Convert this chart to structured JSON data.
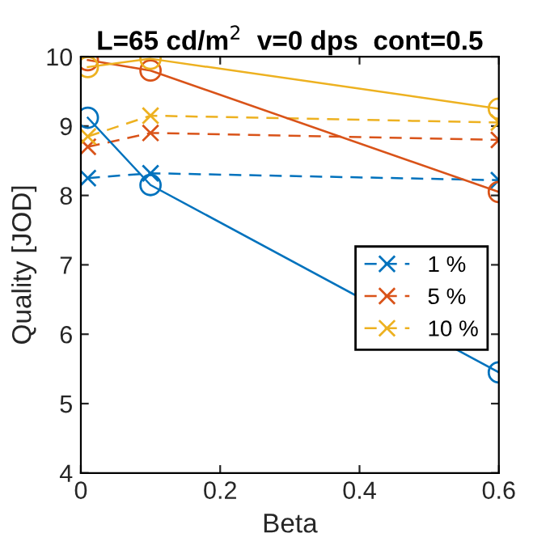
{
  "chart_data": {
    "type": "line",
    "title": "L=65 cd/m$^{2}$  v=0 dps  cont=0.5",
    "xlabel": "Beta",
    "ylabel": "Quality [JOD]",
    "x": [
      0.01,
      0.1,
      0.6
    ],
    "series": [
      {
        "name": "1 %",
        "color": "#0072bd",
        "values": [
          8.25,
          8.32,
          8.22
        ],
        "marker": "cross",
        "line_style": "dashed"
      },
      {
        "name": "5 %",
        "color": "#d95319",
        "values": [
          8.7,
          8.9,
          8.8
        ],
        "marker": "cross",
        "line_style": "dashed"
      },
      {
        "name": "10 %",
        "color": "#edb120",
        "values": [
          8.85,
          9.15,
          9.05
        ],
        "marker": "cross",
        "line_style": "dashed"
      },
      {
        "color": "#0072bd",
        "values": [
          9.12,
          8.15,
          5.45
        ],
        "marker": "circle",
        "line_style": "solid"
      },
      {
        "color": "#d95319",
        "values": [
          9.95,
          9.8,
          8.05
        ],
        "marker": "circle",
        "line_style": "solid"
      },
      {
        "color": "#edb120",
        "values": [
          9.85,
          9.97,
          9.25
        ],
        "marker": "circle",
        "line_style": "solid"
      }
    ],
    "xlim": [
      0,
      0.6
    ],
    "xticks": [
      0,
      0.2,
      0.4,
      0.6
    ],
    "ylim": [
      4,
      10
    ],
    "yticks": [
      4,
      5,
      6,
      7,
      8,
      9,
      10
    ],
    "grid": false,
    "legend": "right"
  }
}
